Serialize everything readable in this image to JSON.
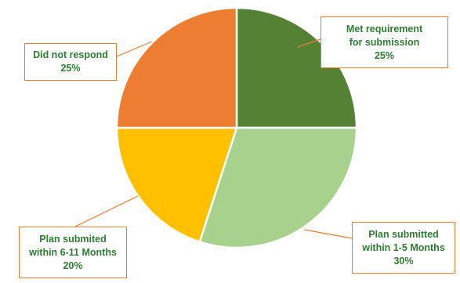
{
  "chart_data": {
    "type": "pie",
    "title": "",
    "slices": [
      {
        "lines": [
          "Met requirement",
          "for submission"
        ],
        "pct": "25%",
        "value": 25,
        "color": "#548235"
      },
      {
        "lines": [
          "Plan submitted",
          "within 1-5 Months"
        ],
        "pct": "30%",
        "value": 30,
        "color": "#A9D18E"
      },
      {
        "lines": [
          "Plan submited",
          "within 6-11 Months"
        ],
        "pct": "20%",
        "value": 20,
        "color": "#FFC000"
      },
      {
        "lines": [
          "Did not respond"
        ],
        "pct": "25%",
        "value": 25,
        "color": "#ED7D31"
      }
    ],
    "start_angle": "12 o'clock",
    "direction": "clockwise",
    "slice_border": "#ffffff",
    "label_border": "#ED7D31",
    "label_text_color": "#2E7D32",
    "leader_line_color": "#ED7D31"
  }
}
